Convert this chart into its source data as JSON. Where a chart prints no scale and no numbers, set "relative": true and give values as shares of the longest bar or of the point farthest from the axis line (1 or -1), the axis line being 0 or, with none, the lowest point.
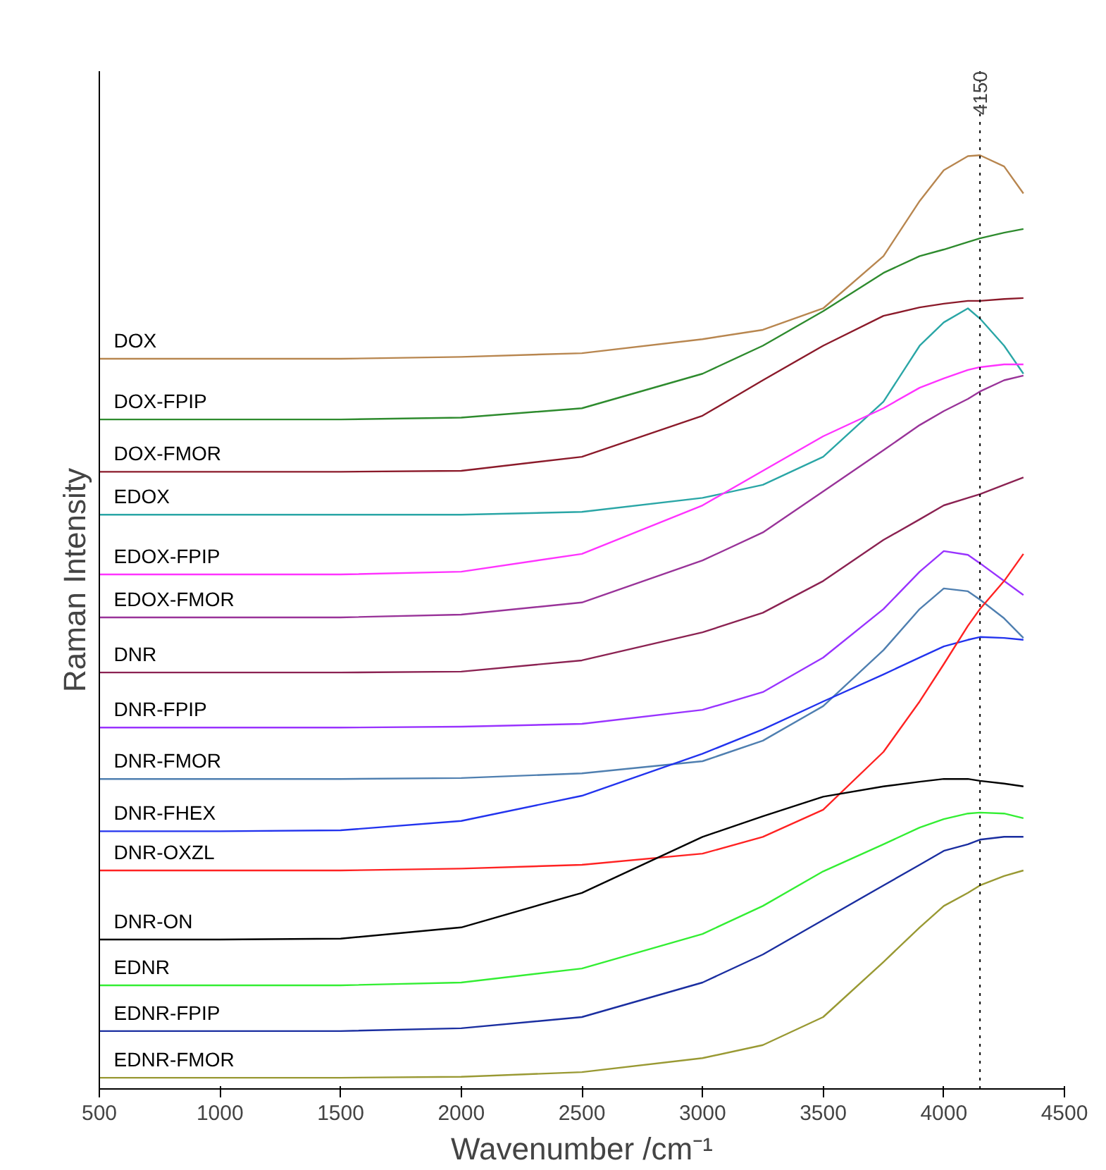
{
  "chart_data": {
    "type": "line",
    "relative": true,
    "xlabel": "Wavenumber /cm⁻¹",
    "ylabel": "Raman Intensity",
    "xlim": [
      500,
      4500
    ],
    "xticks": [
      500,
      1000,
      1500,
      2000,
      2500,
      3000,
      3500,
      4000,
      4500
    ],
    "grid": false,
    "legend": false,
    "marker": "none",
    "line_style": "solid",
    "x": [
      500,
      1000,
      1500,
      2000,
      2500,
      3000,
      3250,
      3500,
      3750,
      3900,
      4000,
      4100,
      4150,
      4250,
      4330
    ],
    "ref_lines": [
      {
        "axis": "x",
        "value": 4150,
        "label": "4150",
        "line_style": "dotted",
        "color": "#000000"
      }
    ],
    "series": [
      {
        "name": "DOX",
        "color": "#b8864f",
        "values": [
          0.782,
          0.782,
          0.782,
          0.784,
          0.788,
          0.803,
          0.813,
          0.836,
          0.892,
          0.951,
          0.984,
          0.999,
          1.0,
          0.988,
          0.959
        ]
      },
      {
        "name": "DOX-FPIP",
        "color": "#2e8b2e",
        "values": [
          0.717,
          0.717,
          0.717,
          0.719,
          0.729,
          0.766,
          0.796,
          0.833,
          0.874,
          0.892,
          0.899,
          0.907,
          0.911,
          0.917,
          0.921
        ]
      },
      {
        "name": "DOX-FMOR",
        "color": "#8b1a2a",
        "values": [
          0.661,
          0.661,
          0.661,
          0.662,
          0.677,
          0.721,
          0.759,
          0.796,
          0.828,
          0.837,
          0.841,
          0.844,
          0.844,
          0.846,
          0.847
        ]
      },
      {
        "name": "EDOX",
        "color": "#2aa6a6",
        "values": [
          0.615,
          0.615,
          0.615,
          0.615,
          0.618,
          0.633,
          0.647,
          0.677,
          0.736,
          0.796,
          0.821,
          0.836,
          0.825,
          0.796,
          0.766
        ]
      },
      {
        "name": "EDOX-FPIP",
        "color": "#ff33ff",
        "values": [
          0.551,
          0.551,
          0.551,
          0.554,
          0.573,
          0.625,
          0.662,
          0.699,
          0.729,
          0.751,
          0.761,
          0.77,
          0.773,
          0.776,
          0.776
        ]
      },
      {
        "name": "EDOX-FMOR",
        "color": "#993399",
        "values": [
          0.505,
          0.505,
          0.505,
          0.508,
          0.521,
          0.566,
          0.596,
          0.64,
          0.684,
          0.711,
          0.726,
          0.739,
          0.747,
          0.759,
          0.764
        ]
      },
      {
        "name": "DNR",
        "color": "#8b2252",
        "values": [
          0.446,
          0.446,
          0.446,
          0.447,
          0.459,
          0.489,
          0.51,
          0.544,
          0.588,
          0.61,
          0.625,
          0.633,
          0.637,
          0.647,
          0.655
        ]
      },
      {
        "name": "DNR-FPIP",
        "color": "#9933ff",
        "values": [
          0.387,
          0.387,
          0.387,
          0.388,
          0.391,
          0.406,
          0.425,
          0.462,
          0.514,
          0.554,
          0.576,
          0.572,
          0.563,
          0.544,
          0.529
        ]
      },
      {
        "name": "DNR-FMOR",
        "color": "#4f7fb0",
        "values": [
          0.332,
          0.332,
          0.332,
          0.333,
          0.338,
          0.351,
          0.373,
          0.41,
          0.47,
          0.514,
          0.536,
          0.533,
          0.524,
          0.504,
          0.483
        ]
      },
      {
        "name": "DNR-FHEX",
        "color": "#2233ee",
        "values": [
          0.276,
          0.276,
          0.277,
          0.287,
          0.314,
          0.359,
          0.385,
          0.415,
          0.444,
          0.462,
          0.474,
          0.481,
          0.484,
          0.483,
          0.481
        ]
      },
      {
        "name": "DNR-OXZL",
        "color": "#ff2222",
        "values": [
          0.234,
          0.234,
          0.234,
          0.236,
          0.24,
          0.252,
          0.27,
          0.299,
          0.361,
          0.415,
          0.455,
          0.496,
          0.514,
          0.544,
          0.573
        ]
      },
      {
        "name": "DNR-ON",
        "color": "#000000",
        "values": [
          0.16,
          0.16,
          0.161,
          0.173,
          0.21,
          0.27,
          0.292,
          0.313,
          0.324,
          0.329,
          0.332,
          0.332,
          0.33,
          0.327,
          0.324
        ]
      },
      {
        "name": "EDNR",
        "color": "#33ee33",
        "values": [
          0.111,
          0.111,
          0.111,
          0.114,
          0.129,
          0.166,
          0.196,
          0.233,
          0.262,
          0.28,
          0.289,
          0.295,
          0.296,
          0.295,
          0.29
        ]
      },
      {
        "name": "EDNR-FPIP",
        "color": "#1a2ea0",
        "values": [
          0.062,
          0.062,
          0.062,
          0.065,
          0.077,
          0.114,
          0.144,
          0.181,
          0.218,
          0.24,
          0.255,
          0.262,
          0.267,
          0.27,
          0.27
        ]
      },
      {
        "name": "EDNR-FMOR",
        "color": "#999933",
        "values": [
          0.012,
          0.012,
          0.012,
          0.013,
          0.018,
          0.033,
          0.047,
          0.077,
          0.136,
          0.173,
          0.196,
          0.21,
          0.218,
          0.228,
          0.234
        ]
      }
    ]
  }
}
